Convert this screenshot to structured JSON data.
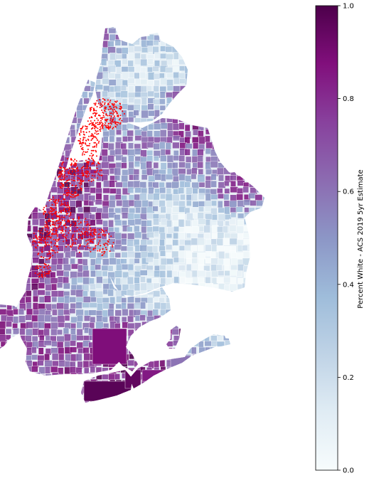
{
  "colorbar": {
    "label": "Percent White - ACS 2019 5yr Estimate",
    "min": 0.0,
    "max": 1.0,
    "ticks": [
      {
        "value": 0.0,
        "label": "0.0"
      },
      {
        "value": 0.2,
        "label": "0.2"
      },
      {
        "value": 0.4,
        "label": "0.4"
      },
      {
        "value": 0.6,
        "label": "0.6"
      },
      {
        "value": 0.8,
        "label": "0.8"
      },
      {
        "value": 1.0,
        "label": "1.0"
      }
    ],
    "colormap": "BuPu",
    "colors": [
      "#f7fcfd",
      "#e0ecf4",
      "#bfd3e6",
      "#9ebcda",
      "#8c96c6",
      "#8c6bb1",
      "#88419d",
      "#810f7c",
      "#4d004b"
    ]
  },
  "map": {
    "fill_opacity": 0.9,
    "tract_edge_color": "#ffffff",
    "point_color": "#ff0000"
  },
  "chart_data": {
    "type": "choropleth",
    "xlabel": "",
    "ylabel": "",
    "colorbar_label": "Percent White - ACS 2019 5yr Estimate",
    "value_range": [
      0.0,
      1.0
    ]
  }
}
